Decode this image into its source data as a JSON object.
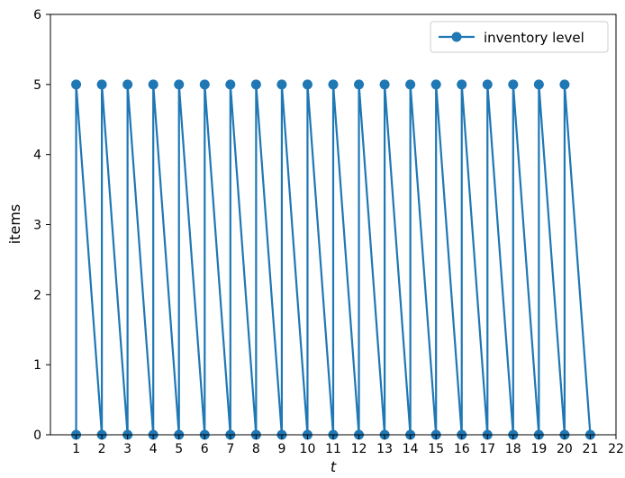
{
  "chart_data": {
    "type": "line",
    "title": "",
    "xlabel": "t",
    "ylabel": "items",
    "xlim": [
      0,
      22
    ],
    "ylim": [
      0,
      6
    ],
    "xticks": [
      1,
      2,
      3,
      4,
      5,
      6,
      7,
      8,
      9,
      10,
      11,
      12,
      13,
      14,
      15,
      16,
      17,
      18,
      19,
      20,
      21,
      22
    ],
    "yticks": [
      0,
      1,
      2,
      3,
      4,
      5,
      6
    ],
    "grid": false,
    "legend": "upper right",
    "series": [
      {
        "name": "inventory level",
        "color": "#1f77b4",
        "marker": "circle",
        "points": [
          [
            1,
            0
          ],
          [
            1,
            5
          ],
          [
            2,
            0
          ],
          [
            2,
            5
          ],
          [
            3,
            0
          ],
          [
            3,
            5
          ],
          [
            4,
            0
          ],
          [
            4,
            5
          ],
          [
            5,
            0
          ],
          [
            5,
            5
          ],
          [
            6,
            0
          ],
          [
            6,
            5
          ],
          [
            7,
            0
          ],
          [
            7,
            5
          ],
          [
            8,
            0
          ],
          [
            8,
            5
          ],
          [
            9,
            0
          ],
          [
            9,
            5
          ],
          [
            10,
            0
          ],
          [
            10,
            5
          ],
          [
            11,
            0
          ],
          [
            11,
            5
          ],
          [
            12,
            0
          ],
          [
            12,
            5
          ],
          [
            13,
            0
          ],
          [
            13,
            5
          ],
          [
            14,
            0
          ],
          [
            14,
            5
          ],
          [
            15,
            0
          ],
          [
            15,
            5
          ],
          [
            16,
            0
          ],
          [
            16,
            5
          ],
          [
            17,
            0
          ],
          [
            17,
            5
          ],
          [
            18,
            0
          ],
          [
            18,
            5
          ],
          [
            19,
            0
          ],
          [
            19,
            5
          ],
          [
            20,
            0
          ],
          [
            20,
            5
          ],
          [
            21,
            0
          ]
        ]
      }
    ]
  }
}
